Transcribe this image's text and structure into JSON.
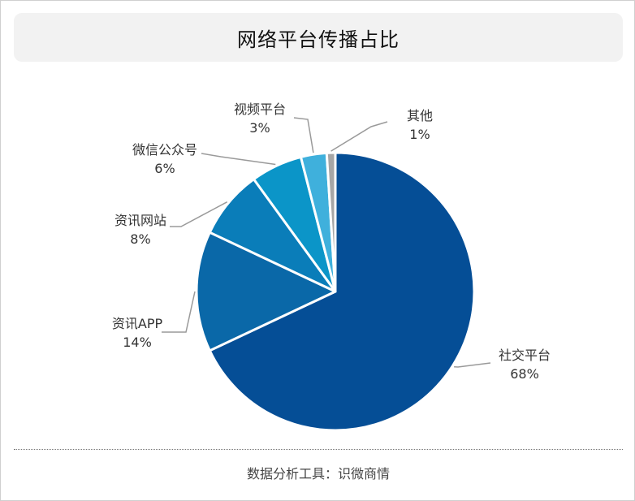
{
  "title": "网络平台传播占比",
  "footer": "数据分析工具：识微商情",
  "chart_data": {
    "type": "pie",
    "title": "网络平台传播占比",
    "start_angle_deg": 0,
    "direction": "clockwise",
    "slices": [
      {
        "label": "社交平台",
        "value": 68,
        "value_label": "68%",
        "color": "#054e96"
      },
      {
        "label": "资讯APP",
        "value": 14,
        "value_label": "14%",
        "color": "#0a68a8"
      },
      {
        "label": "资讯网站",
        "value": 8,
        "value_label": "8%",
        "color": "#0a7db9"
      },
      {
        "label": "微信公众号",
        "value": 6,
        "value_label": "6%",
        "color": "#0b95c8"
      },
      {
        "label": "视频平台",
        "value": 3,
        "value_label": "3%",
        "color": "#3fb0dc"
      },
      {
        "label": "其他",
        "value": 1,
        "value_label": "1%",
        "color": "#a6a6a6"
      }
    ]
  }
}
